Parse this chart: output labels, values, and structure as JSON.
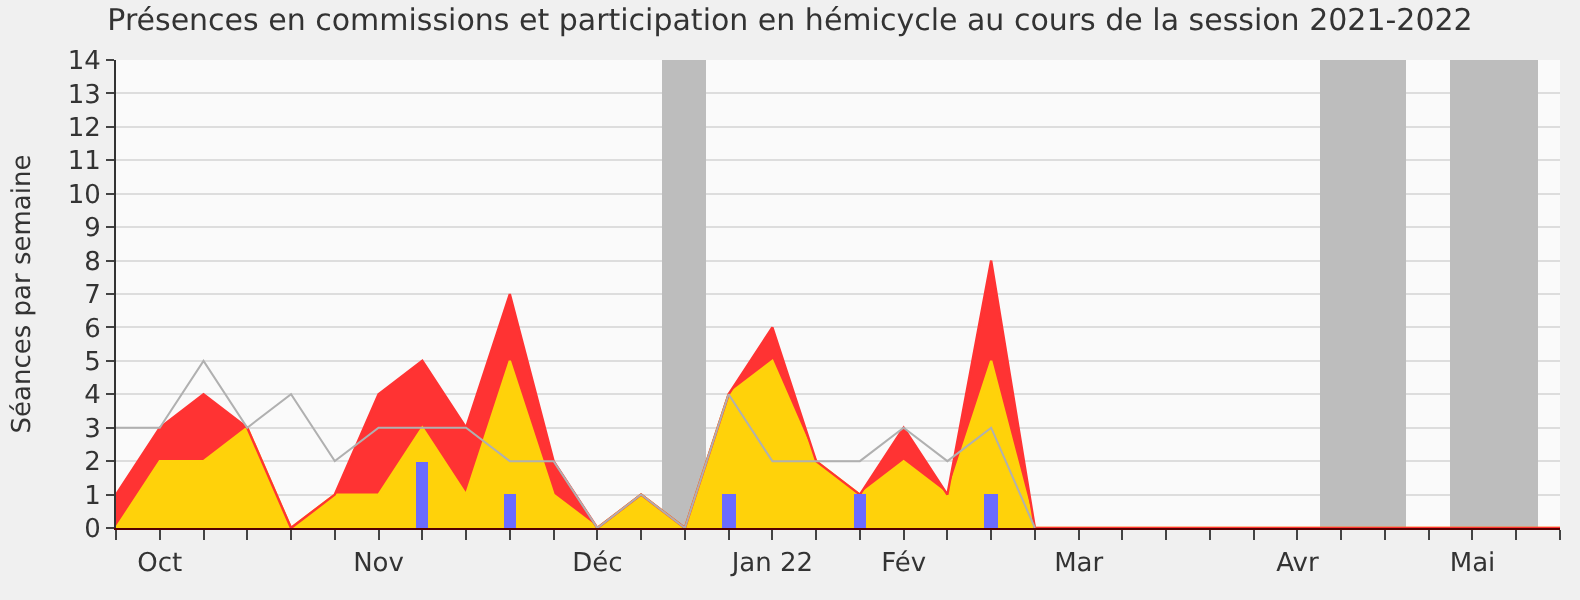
{
  "chart_data": {
    "type": "area",
    "title": "Présences en commissions et participation en hémicycle au cours de la session 2021-2022",
    "ylabel": "Séances par semaine",
    "categories": [
      null,
      "Oct",
      null,
      null,
      null,
      null,
      "Nov",
      null,
      null,
      null,
      null,
      "Déc",
      null,
      null,
      null,
      "Jan 22",
      null,
      null,
      "Fév",
      null,
      null,
      null,
      "Mar",
      null,
      null,
      null,
      null,
      "Avr",
      null,
      null,
      null,
      "Mai",
      null,
      null
    ],
    "stacked": true,
    "series": [
      {
        "type": "bar",
        "color": "#bdbdbd",
        "values": [
          null,
          null,
          null,
          null,
          null,
          null,
          null,
          null,
          null,
          null,
          null,
          null,
          null,
          14,
          null,
          null,
          null,
          null,
          null,
          null,
          null,
          null,
          null,
          null,
          null,
          null,
          null,
          null,
          14,
          14,
          null,
          14,
          14,
          null
        ]
      },
      {
        "color": "#ffd20a",
        "values": [
          0,
          2,
          2,
          3,
          0,
          1,
          1,
          3,
          1,
          5,
          1,
          0,
          1,
          0,
          4,
          5,
          2,
          1,
          2,
          1,
          5,
          0,
          0,
          0,
          0,
          0,
          0,
          0,
          0,
          0,
          0,
          0,
          0,
          0
        ]
      },
      {
        "color": "#ff3333",
        "values": [
          1,
          1,
          2,
          0,
          0,
          0,
          3,
          2,
          2,
          2,
          1,
          0,
          0,
          0,
          0,
          1,
          0,
          0,
          1,
          0,
          3,
          0,
          0,
          0,
          0,
          0,
          0,
          0,
          0,
          0,
          0,
          0,
          0,
          0
        ]
      },
      {
        "type": "line",
        "color": "#b0b0b0",
        "values": [
          3,
          3,
          5,
          3,
          4,
          2,
          3,
          3,
          3,
          2,
          2,
          0,
          1,
          0,
          4,
          2,
          2,
          2,
          3,
          2,
          3,
          0,
          null,
          null,
          null,
          null,
          null,
          null,
          null,
          null,
          null,
          null,
          null,
          null
        ]
      },
      {
        "type": "bar",
        "color": "#6b6bff",
        "values": [
          0,
          0,
          0,
          0,
          0,
          0,
          0,
          2,
          0,
          1,
          0,
          0,
          0,
          0,
          1,
          0,
          0,
          1,
          0,
          0,
          1,
          0,
          0,
          0,
          0,
          0,
          0,
          0,
          0,
          0,
          0,
          0,
          0,
          0
        ]
      }
    ],
    "ylim": [
      0,
      14
    ],
    "yticks": [
      0,
      1,
      2,
      3,
      4,
      5,
      6,
      7,
      8,
      9,
      10,
      11,
      12,
      13,
      14
    ],
    "grid": "y"
  }
}
